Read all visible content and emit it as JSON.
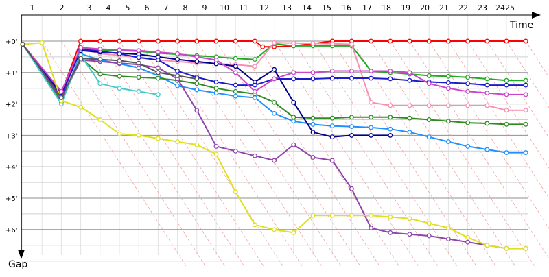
{
  "chart_data": {
    "type": "line",
    "xlabel": "Time",
    "ylabel": "Gap",
    "laps": [
      "1",
      "2",
      "3",
      "4",
      "5",
      "6",
      "7",
      "8",
      "9",
      "10",
      "11",
      "12",
      "13",
      "14",
      "15",
      "16",
      "17",
      "18",
      "19",
      "20",
      "21",
      "22",
      "23",
      "24",
      "25"
    ],
    "lap_tick_labels": [
      "1",
      "2",
      "3",
      "4",
      "5",
      "6",
      "7",
      "8",
      "9",
      "10",
      "11",
      "12",
      "13",
      "14",
      "15",
      "16",
      "17",
      "18",
      "19",
      "20",
      "21",
      "22",
      "23",
      "2425"
    ],
    "y_tick_labels": [
      "+0'",
      "+1'",
      "+2'",
      "+3'",
      "+4'",
      "+5'",
      "+6'"
    ],
    "ylim_minutes": [
      0,
      7.4
    ],
    "grid": true,
    "time_scale_sec_per_minute_of_gap": 60,
    "series": [
      {
        "color": "#ff0000",
        "points": [
          [
            0,
            0.1
          ],
          [
            2,
            1.65
          ],
          [
            3,
            0
          ],
          [
            4,
            0
          ],
          [
            5,
            0
          ],
          [
            6,
            0
          ],
          [
            7,
            0
          ],
          [
            8,
            0
          ],
          [
            9,
            0
          ],
          [
            10,
            0
          ],
          [
            11,
            0
          ],
          [
            12,
            0
          ],
          [
            12.4,
            0.18
          ],
          [
            13,
            0.18
          ],
          [
            14,
            0.15
          ],
          [
            15,
            0.08
          ],
          [
            16,
            0
          ],
          [
            17,
            0
          ],
          [
            18,
            0
          ],
          [
            19,
            0
          ],
          [
            20,
            0
          ],
          [
            21,
            0
          ],
          [
            22,
            0
          ],
          [
            23,
            0
          ],
          [
            24,
            0
          ],
          [
            25,
            0
          ],
          [
            26,
            0
          ]
        ]
      },
      {
        "color": "#22aa22",
        "points": [
          [
            0,
            0.1
          ],
          [
            2,
            1.75
          ],
          [
            3,
            0.2
          ],
          [
            4,
            0.28
          ],
          [
            5,
            0.3
          ],
          [
            6,
            0.32
          ],
          [
            7,
            0.38
          ],
          [
            8,
            0.42
          ],
          [
            9,
            0.46
          ],
          [
            10,
            0.5
          ],
          [
            11,
            0.55
          ],
          [
            12,
            0.58
          ],
          [
            13,
            0.08
          ],
          [
            14,
            0.15
          ],
          [
            15,
            0.15
          ],
          [
            16,
            0.15
          ],
          [
            17,
            0.15
          ],
          [
            18,
            0.95
          ],
          [
            19,
            1.0
          ],
          [
            20,
            1.05
          ],
          [
            21,
            1.1
          ],
          [
            22,
            1.12
          ],
          [
            23,
            1.15
          ],
          [
            24,
            1.2
          ],
          [
            25,
            1.25
          ],
          [
            26,
            1.25
          ]
        ]
      },
      {
        "color": "#f78fb3",
        "points": [
          [
            0,
            0.1
          ],
          [
            2,
            1.8
          ],
          [
            3,
            0.25
          ],
          [
            4,
            0.4
          ],
          [
            5,
            0.45
          ],
          [
            6,
            0.52
          ],
          [
            7,
            0.6
          ],
          [
            8,
            0.65
          ],
          [
            9,
            0.7
          ],
          [
            10,
            0.72
          ],
          [
            11,
            0.75
          ],
          [
            12,
            0.8
          ],
          [
            13,
            0.05
          ],
          [
            14,
            0.06
          ],
          [
            15,
            0.07
          ],
          [
            16,
            0.08
          ],
          [
            17,
            0.1
          ],
          [
            18,
            1.95
          ],
          [
            19,
            2.05
          ],
          [
            20,
            2.05
          ],
          [
            21,
            2.05
          ],
          [
            22,
            2.05
          ],
          [
            23,
            2.05
          ],
          [
            24,
            2.05
          ],
          [
            25,
            2.2
          ],
          [
            26,
            2.2
          ]
        ]
      },
      {
        "color": "#1e90ff",
        "points": [
          [
            0,
            0.1
          ],
          [
            2,
            1.95
          ],
          [
            3,
            0.4
          ],
          [
            4,
            0.6
          ],
          [
            5,
            0.72
          ],
          [
            6,
            0.85
          ],
          [
            7,
            1.1
          ],
          [
            8,
            1.42
          ],
          [
            9,
            1.55
          ],
          [
            10,
            1.65
          ],
          [
            11,
            1.75
          ],
          [
            12,
            1.8
          ],
          [
            13,
            2.3
          ],
          [
            14,
            2.55
          ],
          [
            15,
            2.65
          ],
          [
            16,
            2.7
          ],
          [
            17,
            2.72
          ],
          [
            18,
            2.75
          ],
          [
            19,
            2.8
          ],
          [
            20,
            2.9
          ],
          [
            21,
            3.05
          ],
          [
            22,
            3.2
          ],
          [
            23,
            3.35
          ],
          [
            24,
            3.45
          ],
          [
            25,
            3.55
          ],
          [
            26,
            3.55
          ]
        ]
      },
      {
        "color": "#2e8b22",
        "points": [
          [
            0,
            0.1
          ],
          [
            2,
            1.9
          ],
          [
            3,
            0.55
          ],
          [
            4,
            1.05
          ],
          [
            5,
            1.12
          ],
          [
            6,
            1.15
          ],
          [
            7,
            1.18
          ],
          [
            8,
            1.25
          ],
          [
            9,
            1.35
          ],
          [
            10,
            1.5
          ],
          [
            11,
            1.6
          ],
          [
            12,
            1.68
          ],
          [
            13,
            1.95
          ],
          [
            14,
            2.42
          ],
          [
            15,
            2.45
          ],
          [
            16,
            2.45
          ],
          [
            17,
            2.42
          ],
          [
            18,
            2.42
          ],
          [
            19,
            2.42
          ],
          [
            20,
            2.45
          ],
          [
            21,
            2.5
          ],
          [
            22,
            2.55
          ],
          [
            23,
            2.6
          ],
          [
            24,
            2.62
          ],
          [
            25,
            2.65
          ],
          [
            26,
            2.65
          ]
        ]
      },
      {
        "color": "#00008b",
        "points": [
          [
            0,
            0.1
          ],
          [
            2,
            1.7
          ],
          [
            3,
            0.3
          ],
          [
            4,
            0.35
          ],
          [
            5,
            0.38
          ],
          [
            6,
            0.42
          ],
          [
            7,
            0.5
          ],
          [
            8,
            0.58
          ],
          [
            9,
            0.65
          ],
          [
            10,
            0.72
          ],
          [
            11,
            0.8
          ],
          [
            12,
            1.3
          ],
          [
            13,
            0.9
          ],
          [
            14,
            1.95
          ],
          [
            15,
            2.9
          ],
          [
            16,
            3.05
          ],
          [
            17,
            3.0
          ],
          [
            18,
            3.0
          ],
          [
            19,
            3.0
          ]
        ]
      },
      {
        "color": "#1b1bcc",
        "points": [
          [
            0,
            0.1
          ],
          [
            2,
            1.75
          ],
          [
            3,
            0.25
          ],
          [
            4,
            0.32
          ],
          [
            5,
            0.4
          ],
          [
            6,
            0.52
          ],
          [
            7,
            0.6
          ],
          [
            8,
            0.95
          ],
          [
            9,
            1.15
          ],
          [
            10,
            1.3
          ],
          [
            11,
            1.4
          ],
          [
            12,
            1.4
          ],
          [
            13,
            1.2
          ],
          [
            14,
            1.2
          ],
          [
            15,
            1.2
          ],
          [
            16,
            1.18
          ],
          [
            17,
            1.18
          ],
          [
            18,
            1.18
          ],
          [
            19,
            1.2
          ],
          [
            20,
            1.25
          ],
          [
            21,
            1.3
          ],
          [
            22,
            1.32
          ],
          [
            23,
            1.35
          ],
          [
            24,
            1.4
          ],
          [
            25,
            1.4
          ],
          [
            26,
            1.4
          ]
        ]
      },
      {
        "color": "#8e44ad",
        "points": [
          [
            0,
            0.1
          ],
          [
            2,
            1.85
          ],
          [
            3,
            0.6
          ],
          [
            4,
            0.65
          ],
          [
            5,
            0.7
          ],
          [
            6,
            0.75
          ],
          [
            7,
            0.85
          ],
          [
            8,
            1.2
          ],
          [
            9,
            2.2
          ],
          [
            10,
            3.35
          ],
          [
            11,
            3.5
          ],
          [
            12,
            3.65
          ],
          [
            13,
            3.8
          ],
          [
            14,
            3.3
          ],
          [
            15,
            3.7
          ],
          [
            16,
            3.8
          ],
          [
            17,
            4.7
          ],
          [
            18,
            5.95
          ],
          [
            19,
            6.1
          ],
          [
            20,
            6.15
          ],
          [
            21,
            6.2
          ],
          [
            22,
            6.3
          ],
          [
            23,
            6.4
          ],
          [
            24,
            6.5
          ],
          [
            25,
            6.6
          ],
          [
            26,
            6.6
          ]
        ]
      },
      {
        "color": "#cc44cc",
        "points": [
          [
            0,
            0.1
          ],
          [
            2,
            1.6
          ],
          [
            3,
            0.2
          ],
          [
            4,
            0.25
          ],
          [
            5,
            0.28
          ],
          [
            6,
            0.3
          ],
          [
            7,
            0.35
          ],
          [
            8,
            0.4
          ],
          [
            9,
            0.5
          ],
          [
            10,
            0.6
          ],
          [
            11,
            1.0
          ],
          [
            12,
            1.6
          ],
          [
            13,
            1.2
          ],
          [
            14,
            1.0
          ],
          [
            15,
            1.0
          ],
          [
            16,
            0.95
          ],
          [
            17,
            0.95
          ],
          [
            18,
            0.95
          ],
          [
            19,
            0.95
          ],
          [
            20,
            1.0
          ],
          [
            21,
            1.35
          ],
          [
            22,
            1.5
          ],
          [
            23,
            1.6
          ],
          [
            24,
            1.65
          ],
          [
            25,
            1.7
          ],
          [
            26,
            1.7
          ]
        ]
      },
      {
        "color": "#48c9c9",
        "points": [
          [
            0,
            0.1
          ],
          [
            2,
            2.0
          ],
          [
            3,
            0.45
          ],
          [
            4,
            1.35
          ],
          [
            5,
            1.5
          ],
          [
            6,
            1.6
          ],
          [
            7,
            1.7
          ]
        ]
      },
      {
        "color": "#e0e020",
        "points": [
          [
            0,
            0.1
          ],
          [
            1,
            0.05
          ],
          [
            2,
            1.9
          ],
          [
            3,
            2.1
          ],
          [
            4,
            2.5
          ],
          [
            5,
            2.95
          ],
          [
            6,
            3.0
          ],
          [
            7,
            3.1
          ],
          [
            8,
            3.2
          ],
          [
            9,
            3.3
          ],
          [
            10,
            3.6
          ],
          [
            11,
            4.8
          ],
          [
            12,
            5.85
          ],
          [
            13,
            6.0
          ],
          [
            14,
            6.1
          ],
          [
            15,
            5.55
          ],
          [
            16,
            5.55
          ],
          [
            17,
            5.55
          ],
          [
            18,
            5.55
          ],
          [
            19,
            5.6
          ],
          [
            20,
            5.65
          ],
          [
            21,
            5.8
          ],
          [
            22,
            5.95
          ],
          [
            23,
            6.25
          ],
          [
            24,
            6.5
          ],
          [
            25,
            6.6
          ],
          [
            26,
            6.6
          ]
        ]
      },
      {
        "color": "#555555",
        "points": [
          [
            0,
            0.1
          ],
          [
            2,
            1.8
          ],
          [
            3,
            0.55
          ],
          [
            4,
            0.58
          ],
          [
            5,
            0.62
          ],
          [
            6,
            0.7
          ],
          [
            7,
            1.0
          ],
          [
            8,
            1.1
          ],
          [
            9,
            1.2
          ]
        ]
      }
    ]
  }
}
